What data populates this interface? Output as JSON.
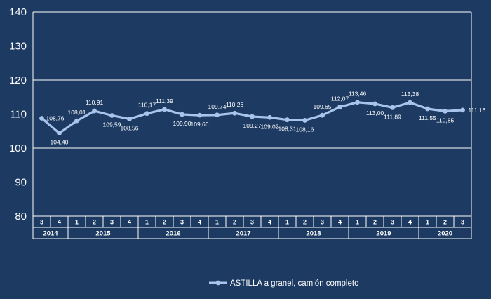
{
  "chart_data": {
    "type": "line",
    "title": "",
    "xlabel": "",
    "ylabel": "",
    "ylim": [
      80,
      140
    ],
    "yticks": [
      "80",
      "90",
      "100",
      "110",
      "120",
      "130",
      "140"
    ],
    "grid": true,
    "legend_position": "bottom",
    "quarters": [
      "3",
      "4",
      "1",
      "2",
      "3",
      "4",
      "1",
      "2",
      "3",
      "4",
      "1",
      "2",
      "3",
      "4",
      "1",
      "2",
      "3",
      "4",
      "1",
      "2",
      "3",
      "4",
      "1",
      "2",
      "3"
    ],
    "years": [
      {
        "label": "2014",
        "span": 2
      },
      {
        "label": "2015",
        "span": 4
      },
      {
        "label": "2016",
        "span": 4
      },
      {
        "label": "2017",
        "span": 4
      },
      {
        "label": "2018",
        "span": 4
      },
      {
        "label": "2019",
        "span": 4
      },
      {
        "label": "2020",
        "span": 3
      }
    ],
    "series": [
      {
        "name": "ASTILLA a granel, camión completo",
        "color": "#a9c4ec",
        "values": [
          108.76,
          104.4,
          108.01,
          110.91,
          109.59,
          108.56,
          110.17,
          111.39,
          109.9,
          109.66,
          109.74,
          110.26,
          109.27,
          109.02,
          108.31,
          108.16,
          109.65,
          112.07,
          113.46,
          113.0,
          111.89,
          113.38,
          111.55,
          110.85,
          111.16
        ],
        "labels": [
          "108,76",
          "104,40",
          "108,01",
          "110,91",
          "109,59",
          "108,56",
          "110,17",
          "111,39",
          "109,90",
          "109,66",
          "109,74",
          "110,26",
          "109,27",
          "109,02",
          "108,31",
          "108,16",
          "109,65",
          "112,07",
          "113,46",
          "113,00",
          "111,89",
          "113,38",
          "111,55",
          "110,85",
          "111,16"
        ]
      }
    ]
  },
  "colors": {
    "background": "#1c3a62",
    "gridline": "#ffffff",
    "text": "#ffffff"
  }
}
